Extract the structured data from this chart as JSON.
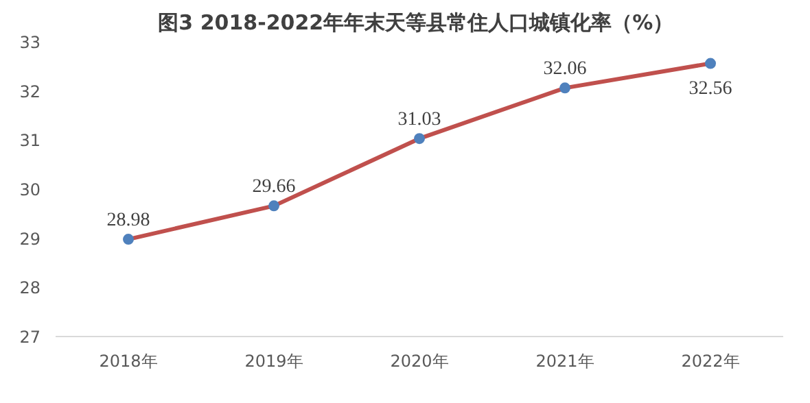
{
  "chart_data": {
    "type": "line",
    "title": "图3  2018-2022年年末天等县常住人口城镇化率（%）",
    "categories": [
      "2018年",
      "2019年",
      "2020年",
      "2021年",
      "2022年"
    ],
    "series": [
      {
        "color": "#c0504d",
        "values": [
          28.98,
          29.66,
          31.03,
          32.06,
          32.56
        ]
      }
    ],
    "ylim": [
      27,
      33
    ],
    "yticks": [
      27,
      28,
      29,
      30,
      31,
      32,
      33
    ],
    "grid": false,
    "marker": "circle",
    "line_style": "solid",
    "data_labels": true
  }
}
